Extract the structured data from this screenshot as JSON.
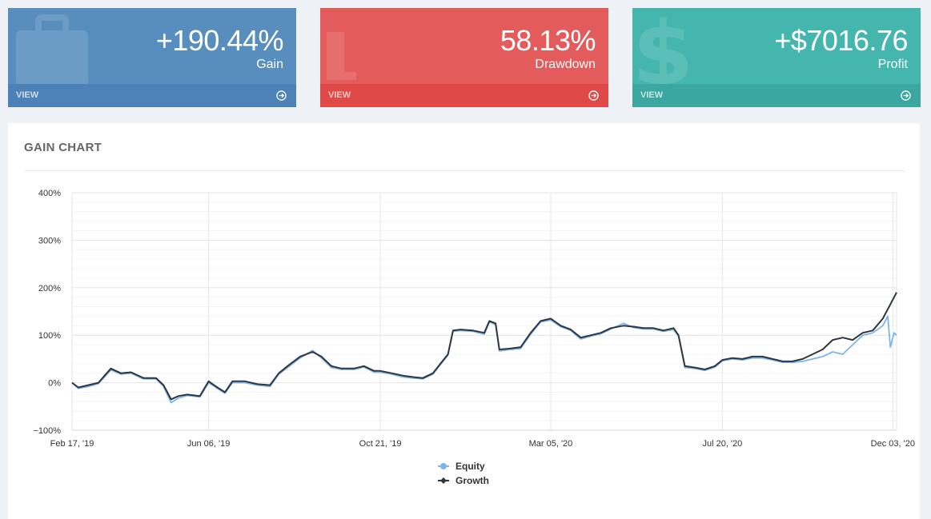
{
  "cards": [
    {
      "value": "+190.44%",
      "label": "Gain",
      "more": "VIEW",
      "icon": "briefcase-icon"
    },
    {
      "value": "58.13%",
      "label": "Drawdown",
      "more": "VIEW",
      "icon": "chart-bars-icon"
    },
    {
      "value": "+$7016.76",
      "label": "Profit",
      "more": "VIEW",
      "icon": "dollar-icon"
    }
  ],
  "colors": {
    "blue": "#578ebe",
    "red": "#e35b5a",
    "green": "#44b6ae",
    "equity": "#7cb5ec",
    "growth": "#2f3640"
  },
  "portlet": {
    "title": "GAIN CHART"
  },
  "chart_data": {
    "type": "line",
    "x_labels": [
      "Feb 17, '19",
      "Jun 06, '19",
      "Oct 21, '19",
      "Mar 05, '20",
      "Jul 20, '20",
      "Dec 03, '20"
    ],
    "x_label_dates": [
      "2019-02-17",
      "2019-06-06",
      "2019-10-21",
      "2020-03-05",
      "2020-07-20",
      "2020-12-03"
    ],
    "x_range": [
      "2019-02-17",
      "2020-12-06"
    ],
    "y_ticks": [
      -100,
      0,
      100,
      200,
      300,
      400
    ],
    "y_tick_labels": [
      "−100%",
      "0%",
      "100%",
      "200%",
      "300%",
      "400%"
    ],
    "ylim": [
      -100,
      400
    ],
    "legend": "bottom-center",
    "series": [
      {
        "name": "Growth",
        "points": [
          [
            "2019-02-17",
            0
          ],
          [
            "2019-02-22",
            -10
          ],
          [
            "2019-03-02",
            -5
          ],
          [
            "2019-03-10",
            0
          ],
          [
            "2019-03-20",
            30
          ],
          [
            "2019-03-28",
            20
          ],
          [
            "2019-04-05",
            22
          ],
          [
            "2019-04-15",
            10
          ],
          [
            "2019-04-25",
            10
          ],
          [
            "2019-05-01",
            -5
          ],
          [
            "2019-05-07",
            -35
          ],
          [
            "2019-05-13",
            -28
          ],
          [
            "2019-05-20",
            -25
          ],
          [
            "2019-05-30",
            -28
          ],
          [
            "2019-06-06",
            3
          ],
          [
            "2019-06-13",
            -10
          ],
          [
            "2019-06-19",
            -20
          ],
          [
            "2019-06-25",
            3
          ],
          [
            "2019-07-05",
            3
          ],
          [
            "2019-07-15",
            -3
          ],
          [
            "2019-07-25",
            -5
          ],
          [
            "2019-08-01",
            20
          ],
          [
            "2019-08-08",
            35
          ],
          [
            "2019-08-18",
            55
          ],
          [
            "2019-08-28",
            65
          ],
          [
            "2019-09-04",
            55
          ],
          [
            "2019-09-12",
            35
          ],
          [
            "2019-09-20",
            30
          ],
          [
            "2019-09-30",
            30
          ],
          [
            "2019-10-08",
            35
          ],
          [
            "2019-10-16",
            25
          ],
          [
            "2019-10-21",
            25
          ],
          [
            "2019-10-30",
            20
          ],
          [
            "2019-11-08",
            15
          ],
          [
            "2019-11-16",
            12
          ],
          [
            "2019-11-24",
            10
          ],
          [
            "2019-12-02",
            20
          ],
          [
            "2019-12-08",
            40
          ],
          [
            "2019-12-14",
            60
          ],
          [
            "2019-12-18",
            110
          ],
          [
            "2019-12-24",
            112
          ],
          [
            "2020-01-03",
            110
          ],
          [
            "2020-01-12",
            105
          ],
          [
            "2020-01-16",
            130
          ],
          [
            "2020-01-21",
            125
          ],
          [
            "2020-01-24",
            70
          ],
          [
            "2020-02-02",
            72
          ],
          [
            "2020-02-10",
            75
          ],
          [
            "2020-02-18",
            105
          ],
          [
            "2020-02-26",
            130
          ],
          [
            "2020-03-05",
            135
          ],
          [
            "2020-03-13",
            120
          ],
          [
            "2020-03-21",
            112
          ],
          [
            "2020-03-29",
            95
          ],
          [
            "2020-04-06",
            100
          ],
          [
            "2020-04-14",
            105
          ],
          [
            "2020-04-22",
            115
          ],
          [
            "2020-05-02",
            120
          ],
          [
            "2020-05-10",
            118
          ],
          [
            "2020-05-18",
            115
          ],
          [
            "2020-05-26",
            115
          ],
          [
            "2020-06-03",
            110
          ],
          [
            "2020-06-11",
            115
          ],
          [
            "2020-06-15",
            100
          ],
          [
            "2020-06-20",
            35
          ],
          [
            "2020-06-28",
            32
          ],
          [
            "2020-07-06",
            28
          ],
          [
            "2020-07-14",
            35
          ],
          [
            "2020-07-20",
            48
          ],
          [
            "2020-07-28",
            52
          ],
          [
            "2020-08-05",
            50
          ],
          [
            "2020-08-13",
            55
          ],
          [
            "2020-08-21",
            55
          ],
          [
            "2020-08-29",
            50
          ],
          [
            "2020-09-06",
            45
          ],
          [
            "2020-09-14",
            45
          ],
          [
            "2020-09-22",
            50
          ],
          [
            "2020-09-30",
            60
          ],
          [
            "2020-10-08",
            70
          ],
          [
            "2020-10-16",
            90
          ],
          [
            "2020-10-24",
            95
          ],
          [
            "2020-11-01",
            90
          ],
          [
            "2020-11-09",
            105
          ],
          [
            "2020-11-17",
            110
          ],
          [
            "2020-11-25",
            135
          ],
          [
            "2020-12-01",
            165
          ],
          [
            "2020-12-06",
            190
          ]
        ]
      },
      {
        "name": "Equity",
        "points": [
          [
            "2019-02-17",
            0
          ],
          [
            "2019-02-22",
            -12
          ],
          [
            "2019-03-02",
            -8
          ],
          [
            "2019-03-10",
            -2
          ],
          [
            "2019-03-20",
            27
          ],
          [
            "2019-03-28",
            18
          ],
          [
            "2019-04-05",
            20
          ],
          [
            "2019-04-15",
            8
          ],
          [
            "2019-04-25",
            8
          ],
          [
            "2019-05-01",
            -8
          ],
          [
            "2019-05-07",
            -42
          ],
          [
            "2019-05-13",
            -32
          ],
          [
            "2019-05-20",
            -27
          ],
          [
            "2019-05-30",
            -30
          ],
          [
            "2019-06-06",
            0
          ],
          [
            "2019-06-13",
            -12
          ],
          [
            "2019-06-19",
            -22
          ],
          [
            "2019-06-25",
            0
          ],
          [
            "2019-07-05",
            0
          ],
          [
            "2019-07-15",
            -5
          ],
          [
            "2019-07-25",
            -8
          ],
          [
            "2019-08-01",
            18
          ],
          [
            "2019-08-08",
            32
          ],
          [
            "2019-08-18",
            52
          ],
          [
            "2019-08-28",
            68
          ],
          [
            "2019-09-04",
            52
          ],
          [
            "2019-09-12",
            32
          ],
          [
            "2019-09-20",
            28
          ],
          [
            "2019-09-30",
            28
          ],
          [
            "2019-10-08",
            33
          ],
          [
            "2019-10-16",
            22
          ],
          [
            "2019-10-21",
            22
          ],
          [
            "2019-10-30",
            18
          ],
          [
            "2019-11-08",
            12
          ],
          [
            "2019-11-16",
            10
          ],
          [
            "2019-11-24",
            8
          ],
          [
            "2019-12-02",
            18
          ],
          [
            "2019-12-08",
            38
          ],
          [
            "2019-12-14",
            58
          ],
          [
            "2019-12-18",
            108
          ],
          [
            "2019-12-24",
            110
          ],
          [
            "2020-01-03",
            108
          ],
          [
            "2020-01-12",
            102
          ],
          [
            "2020-01-16",
            128
          ],
          [
            "2020-01-21",
            122
          ],
          [
            "2020-01-24",
            67
          ],
          [
            "2020-02-02",
            70
          ],
          [
            "2020-02-10",
            72
          ],
          [
            "2020-02-18",
            102
          ],
          [
            "2020-02-26",
            128
          ],
          [
            "2020-03-05",
            132
          ],
          [
            "2020-03-13",
            118
          ],
          [
            "2020-03-21",
            110
          ],
          [
            "2020-03-29",
            92
          ],
          [
            "2020-04-06",
            98
          ],
          [
            "2020-04-14",
            103
          ],
          [
            "2020-04-22",
            113
          ],
          [
            "2020-05-02",
            125
          ],
          [
            "2020-05-10",
            116
          ],
          [
            "2020-05-18",
            113
          ],
          [
            "2020-05-26",
            113
          ],
          [
            "2020-06-03",
            108
          ],
          [
            "2020-06-11",
            112
          ],
          [
            "2020-06-15",
            98
          ],
          [
            "2020-06-20",
            32
          ],
          [
            "2020-06-28",
            30
          ],
          [
            "2020-07-06",
            26
          ],
          [
            "2020-07-14",
            33
          ],
          [
            "2020-07-20",
            46
          ],
          [
            "2020-07-28",
            50
          ],
          [
            "2020-08-05",
            48
          ],
          [
            "2020-08-13",
            52
          ],
          [
            "2020-08-21",
            52
          ],
          [
            "2020-08-29",
            48
          ],
          [
            "2020-09-06",
            43
          ],
          [
            "2020-09-14",
            43
          ],
          [
            "2020-09-22",
            45
          ],
          [
            "2020-09-30",
            50
          ],
          [
            "2020-10-08",
            55
          ],
          [
            "2020-10-16",
            65
          ],
          [
            "2020-10-24",
            60
          ],
          [
            "2020-11-01",
            80
          ],
          [
            "2020-11-09",
            100
          ],
          [
            "2020-11-17",
            105
          ],
          [
            "2020-11-25",
            120
          ],
          [
            "2020-11-29",
            140
          ],
          [
            "2020-12-01",
            75
          ],
          [
            "2020-12-04",
            105
          ],
          [
            "2020-12-06",
            100
          ]
        ]
      }
    ]
  }
}
